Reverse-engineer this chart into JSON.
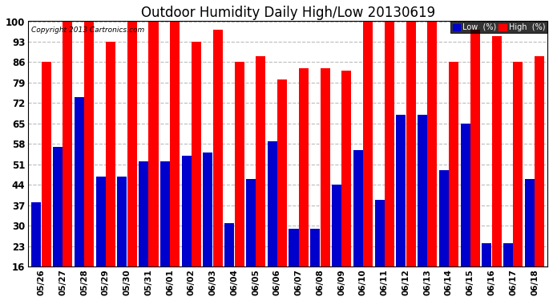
{
  "title": "Outdoor Humidity Daily High/Low 20130619",
  "copyright": "Copyright 2013 Cartronics.com",
  "dates": [
    "05/26",
    "05/27",
    "05/28",
    "05/29",
    "05/30",
    "05/31",
    "06/01",
    "06/02",
    "06/03",
    "06/04",
    "06/05",
    "06/06",
    "06/07",
    "06/08",
    "06/09",
    "06/10",
    "06/11",
    "06/12",
    "06/13",
    "06/14",
    "06/15",
    "06/16",
    "06/17",
    "06/18"
  ],
  "high": [
    86,
    100,
    100,
    93,
    100,
    100,
    100,
    93,
    97,
    86,
    88,
    80,
    84,
    84,
    83,
    100,
    100,
    100,
    100,
    86,
    97,
    95,
    86,
    88
  ],
  "low": [
    38,
    57,
    74,
    47,
    47,
    52,
    52,
    54,
    55,
    31,
    46,
    59,
    29,
    29,
    44,
    56,
    39,
    68,
    68,
    49,
    65,
    24,
    24,
    46
  ],
  "high_color": "#FF0000",
  "low_color": "#0000CC",
  "bg_color": "#FFFFFF",
  "grid_color": "#BBBBBB",
  "ylim": [
    16,
    100
  ],
  "yticks": [
    16,
    23,
    30,
    37,
    44,
    51,
    58,
    65,
    72,
    79,
    86,
    93,
    100
  ],
  "title_fontsize": 12,
  "legend_labels": [
    "Low  (%)",
    "High  (%)"
  ]
}
